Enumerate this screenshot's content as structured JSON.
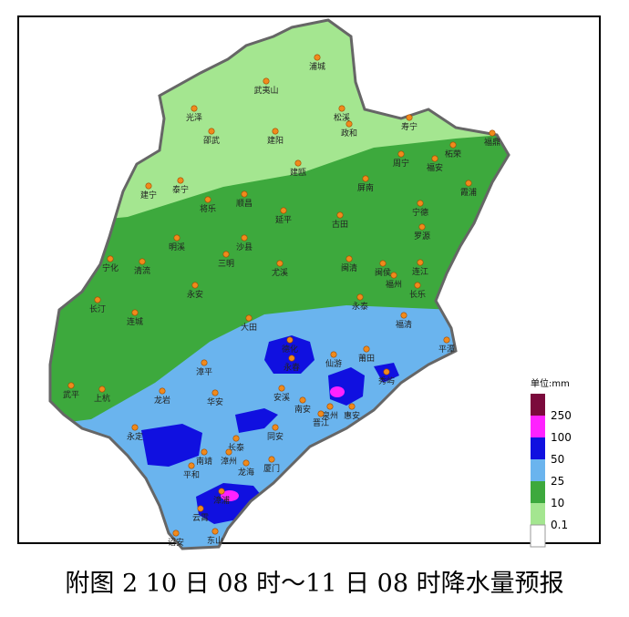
{
  "legend": {
    "title": "单位:mm",
    "labels": [
      "250",
      "100",
      "50",
      "25",
      "10",
      "0.1"
    ]
  },
  "cities": [
    "浦城",
    "武夷山",
    "光泽",
    "松溪",
    "政和",
    "寿宁",
    "邵武",
    "建阳",
    "福鼎",
    "周宁",
    "柘荣",
    "福安",
    "建瓯",
    "泰宁",
    "建宁",
    "霞浦",
    "屏南",
    "将乐",
    "顺昌",
    "宁德",
    "古田",
    "延平",
    "罗源",
    "明溪",
    "沙县",
    "宁化",
    "清流",
    "三明",
    "尤溪",
    "闽清",
    "闽侯",
    "连江",
    "福州",
    "长乐",
    "永安",
    "长汀",
    "连城",
    "永泰",
    "福清",
    "大田",
    "平潭",
    "德化",
    "永春",
    "仙游",
    "莆田",
    "秀屿",
    "漳平",
    "武平",
    "上杭",
    "龙岩",
    "华安",
    "安溪",
    "南安",
    "泉州",
    "惠安",
    "晋江",
    "永定",
    "同安",
    "长泰",
    "南靖",
    "漳州",
    "厦门",
    "龙海",
    "平和",
    "漳浦",
    "云霄",
    "东山",
    "诏安"
  ],
  "caption": "附图 2 10 日 08 时～11 日 08 时降水量预报"
}
